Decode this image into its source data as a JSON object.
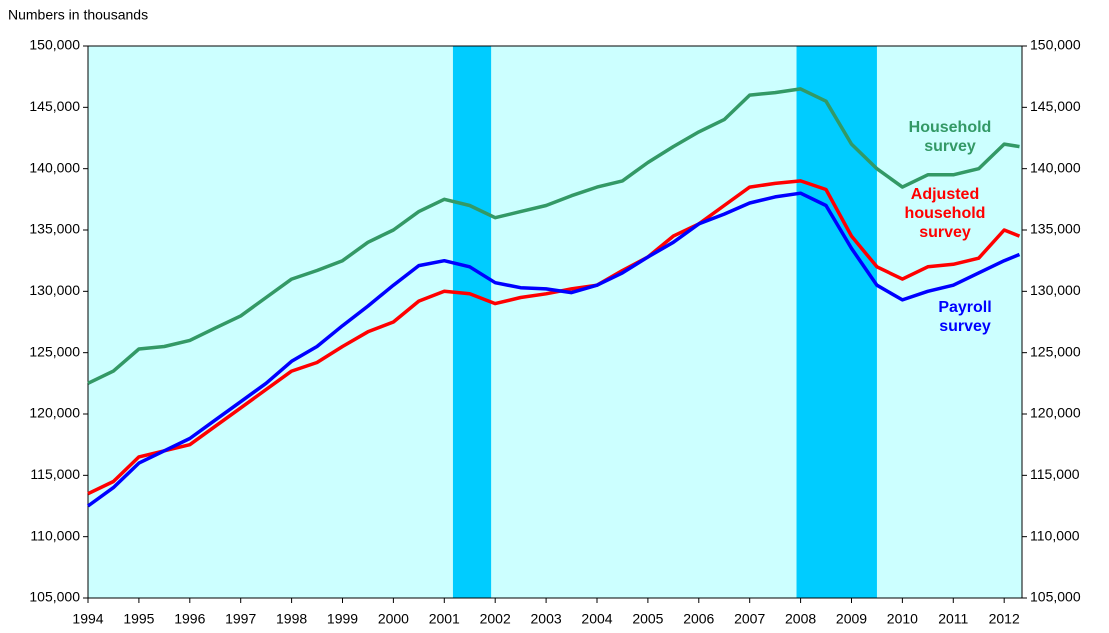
{
  "chart_data": {
    "type": "line",
    "y_axis_label": "Numbers in thousands",
    "x": [
      1994,
      1994.5,
      1995,
      1995.5,
      1996,
      1996.5,
      1997,
      1997.5,
      1998,
      1998.5,
      1999,
      1999.5,
      2000,
      2000.5,
      2001,
      2001.5,
      2002,
      2002.5,
      2003,
      2003.5,
      2004,
      2004.5,
      2005,
      2005.5,
      2006,
      2006.5,
      2007,
      2007.5,
      2008,
      2008.5,
      2009,
      2009.5,
      2010,
      2010.5,
      2011,
      2011.5,
      2012,
      2012.3
    ],
    "xlim": [
      1994,
      2012.35
    ],
    "xticks": [
      1994,
      1995,
      1996,
      1997,
      1998,
      1999,
      2000,
      2001,
      2002,
      2003,
      2004,
      2005,
      2006,
      2007,
      2008,
      2009,
      2010,
      2011,
      2012
    ],
    "ylim": [
      105000,
      150000
    ],
    "yticks": [
      {
        "value": 105000,
        "label": "105,000"
      },
      {
        "value": 110000,
        "label": "110,000"
      },
      {
        "value": 115000,
        "label": "115,000"
      },
      {
        "value": 120000,
        "label": "120,000"
      },
      {
        "value": 125000,
        "label": "125,000"
      },
      {
        "value": 130000,
        "label": "130,000"
      },
      {
        "value": 135000,
        "label": "135,000"
      },
      {
        "value": 140000,
        "label": "140,000"
      },
      {
        "value": 145000,
        "label": "145,000"
      },
      {
        "value": 150000,
        "label": "150,000"
      }
    ],
    "y2lim": [
      105000,
      150000
    ],
    "y2ticks": [
      {
        "value": 105000,
        "label": "105,000"
      },
      {
        "value": 110000,
        "label": "110,000"
      },
      {
        "value": 115000,
        "label": "115,000"
      },
      {
        "value": 120000,
        "label": "120,000"
      },
      {
        "value": 125000,
        "label": "125,000"
      },
      {
        "value": 130000,
        "label": "130,000"
      },
      {
        "value": 135000,
        "label": "135,000"
      },
      {
        "value": 140000,
        "label": "140,000"
      },
      {
        "value": 145000,
        "label": "145,000"
      },
      {
        "value": 150000,
        "label": "150,000"
      }
    ],
    "background_color": "#ccffff",
    "shaded_color": "#00ccff",
    "shaded_periods": [
      [
        2001.17,
        2001.92
      ],
      [
        2007.92,
        2009.5
      ]
    ],
    "series": [
      {
        "name": "Household survey",
        "color": "#339966",
        "values": [
          122500,
          123500,
          125300,
          125500,
          126000,
          127000,
          128000,
          129500,
          131000,
          131700,
          132500,
          134000,
          135000,
          136500,
          137500,
          137000,
          136000,
          136500,
          137000,
          137800,
          138500,
          139000,
          140500,
          141800,
          143000,
          144000,
          146000,
          146200,
          146500,
          145500,
          142000,
          140000,
          138500,
          139500,
          139500,
          140000,
          142000,
          141800
        ]
      },
      {
        "name": "Adjusted household survey",
        "color": "#ff0000",
        "values": [
          113500,
          114500,
          116500,
          117000,
          117500,
          119000,
          120500,
          122000,
          123500,
          124200,
          125500,
          126700,
          127500,
          129200,
          130000,
          129800,
          129000,
          129500,
          129800,
          130200,
          130500,
          131700,
          132800,
          134500,
          135500,
          137000,
          138500,
          138800,
          139000,
          138300,
          134500,
          132000,
          131000,
          132000,
          132200,
          132700,
          135000,
          134500
        ]
      },
      {
        "name": "Payroll survey",
        "color": "#0000ff",
        "values": [
          112500,
          114000,
          116000,
          117000,
          118000,
          119500,
          121000,
          122500,
          124300,
          125500,
          127200,
          128800,
          130500,
          132100,
          132500,
          132000,
          130700,
          130300,
          130200,
          129900,
          130500,
          131500,
          132800,
          134000,
          135500,
          136300,
          137200,
          137700,
          138000,
          137000,
          133500,
          130500,
          129300,
          130000,
          130500,
          131500,
          132500,
          133000
        ]
      }
    ]
  }
}
